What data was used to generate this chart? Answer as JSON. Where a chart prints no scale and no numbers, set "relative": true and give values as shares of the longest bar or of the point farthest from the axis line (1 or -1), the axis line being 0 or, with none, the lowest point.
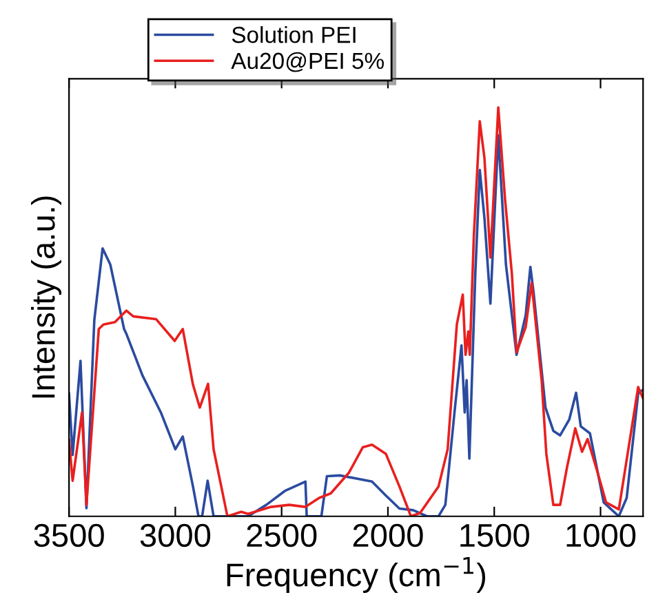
{
  "chart_data": {
    "type": "line",
    "xlabel": "Frequency (cm$^{−1}$)",
    "ylabel": "Intensity (a.u.)",
    "relative": true,
    "legend": "top",
    "grid": false,
    "line_style": "solid",
    "marker": "none",
    "xlim": [
      3500,
      800
    ],
    "xticks": [
      3500,
      3000,
      2500,
      2000,
      1500,
      1000
    ],
    "series": [
      {
        "name": "Solution PEI",
        "color": "#2b4ba0",
        "x": [
          3500,
          3483,
          3446,
          3418,
          3381,
          3342,
          3306,
          3241,
          3230,
          3155,
          3068,
          3000,
          2965,
          2917,
          2891,
          2874,
          2848,
          2820,
          2658,
          2572,
          2485,
          2388,
          2382,
          2313,
          2287,
          2226,
          2075,
          2010,
          1946,
          1881,
          1816,
          1762,
          1730,
          1687,
          1654,
          1639,
          1630,
          1617,
          1589,
          1568,
          1546,
          1518,
          1481,
          1445,
          1395,
          1352,
          1330,
          1315,
          1259,
          1222,
          1190,
          1147,
          1115,
          1093,
          1050,
          985,
          914,
          877,
          823,
          800
        ],
        "values": [
          0.3,
          0.15,
          0.38,
          0.02,
          0.48,
          0.655,
          0.616,
          0.458,
          0.446,
          0.345,
          0.254,
          0.164,
          0.195,
          0.073,
          0,
          0,
          0.087,
          0,
          0,
          0.028,
          0.062,
          0.085,
          0,
          0,
          0.098,
          0.1,
          0.085,
          0.051,
          0.019,
          0.015,
          0,
          0,
          0.028,
          0.254,
          0.418,
          0.254,
          0.333,
          0.141,
          0.593,
          0.847,
          0.729,
          0.52,
          0.932,
          0.616,
          0.395,
          0.492,
          0.61,
          0.548,
          0.266,
          0.209,
          0.198,
          0.237,
          0.302,
          0.22,
          0.203,
          0.034,
          0,
          0.045,
          0.3,
          0.31
        ]
      },
      {
        "name": "Au20@PEI 5%",
        "color": "#e8201f",
        "x": [
          3500,
          3483,
          3439,
          3418,
          3360,
          3338,
          3284,
          3230,
          3198,
          3090,
          3003,
          2965,
          2917,
          2885,
          2846,
          2820,
          2755,
          2690,
          2658,
          2550,
          2464,
          2388,
          2323,
          2269,
          2183,
          2118,
          2075,
          2010,
          1946,
          1892,
          1849,
          1762,
          1719,
          1676,
          1648,
          1635,
          1622,
          1615,
          1596,
          1568,
          1546,
          1518,
          1481,
          1449,
          1417,
          1395,
          1352,
          1324,
          1277,
          1255,
          1222,
          1190,
          1158,
          1119,
          1087,
          1061,
          1017,
          974,
          914,
          823,
          800
        ],
        "values": [
          0.186,
          0.087,
          0.254,
          0.028,
          0.458,
          0.469,
          0.475,
          0.503,
          0.489,
          0.482,
          0.429,
          0.458,
          0.322,
          0.266,
          0.324,
          0.164,
          0,
          0.011,
          0.006,
          0.023,
          0.028,
          0.023,
          0.045,
          0.056,
          0.107,
          0.169,
          0.175,
          0.153,
          0.073,
          0,
          0.008,
          0.073,
          0.164,
          0.469,
          0.542,
          0.395,
          0.452,
          0.395,
          0.684,
          0.966,
          0.876,
          0.633,
          1.0,
          0.774,
          0.593,
          0.401,
          0.463,
          0.571,
          0.333,
          0.153,
          0.028,
          0.028,
          0.119,
          0.215,
          0.158,
          0.189,
          0.113,
          0.034,
          0.017,
          0.316,
          0.288
        ]
      }
    ]
  }
}
